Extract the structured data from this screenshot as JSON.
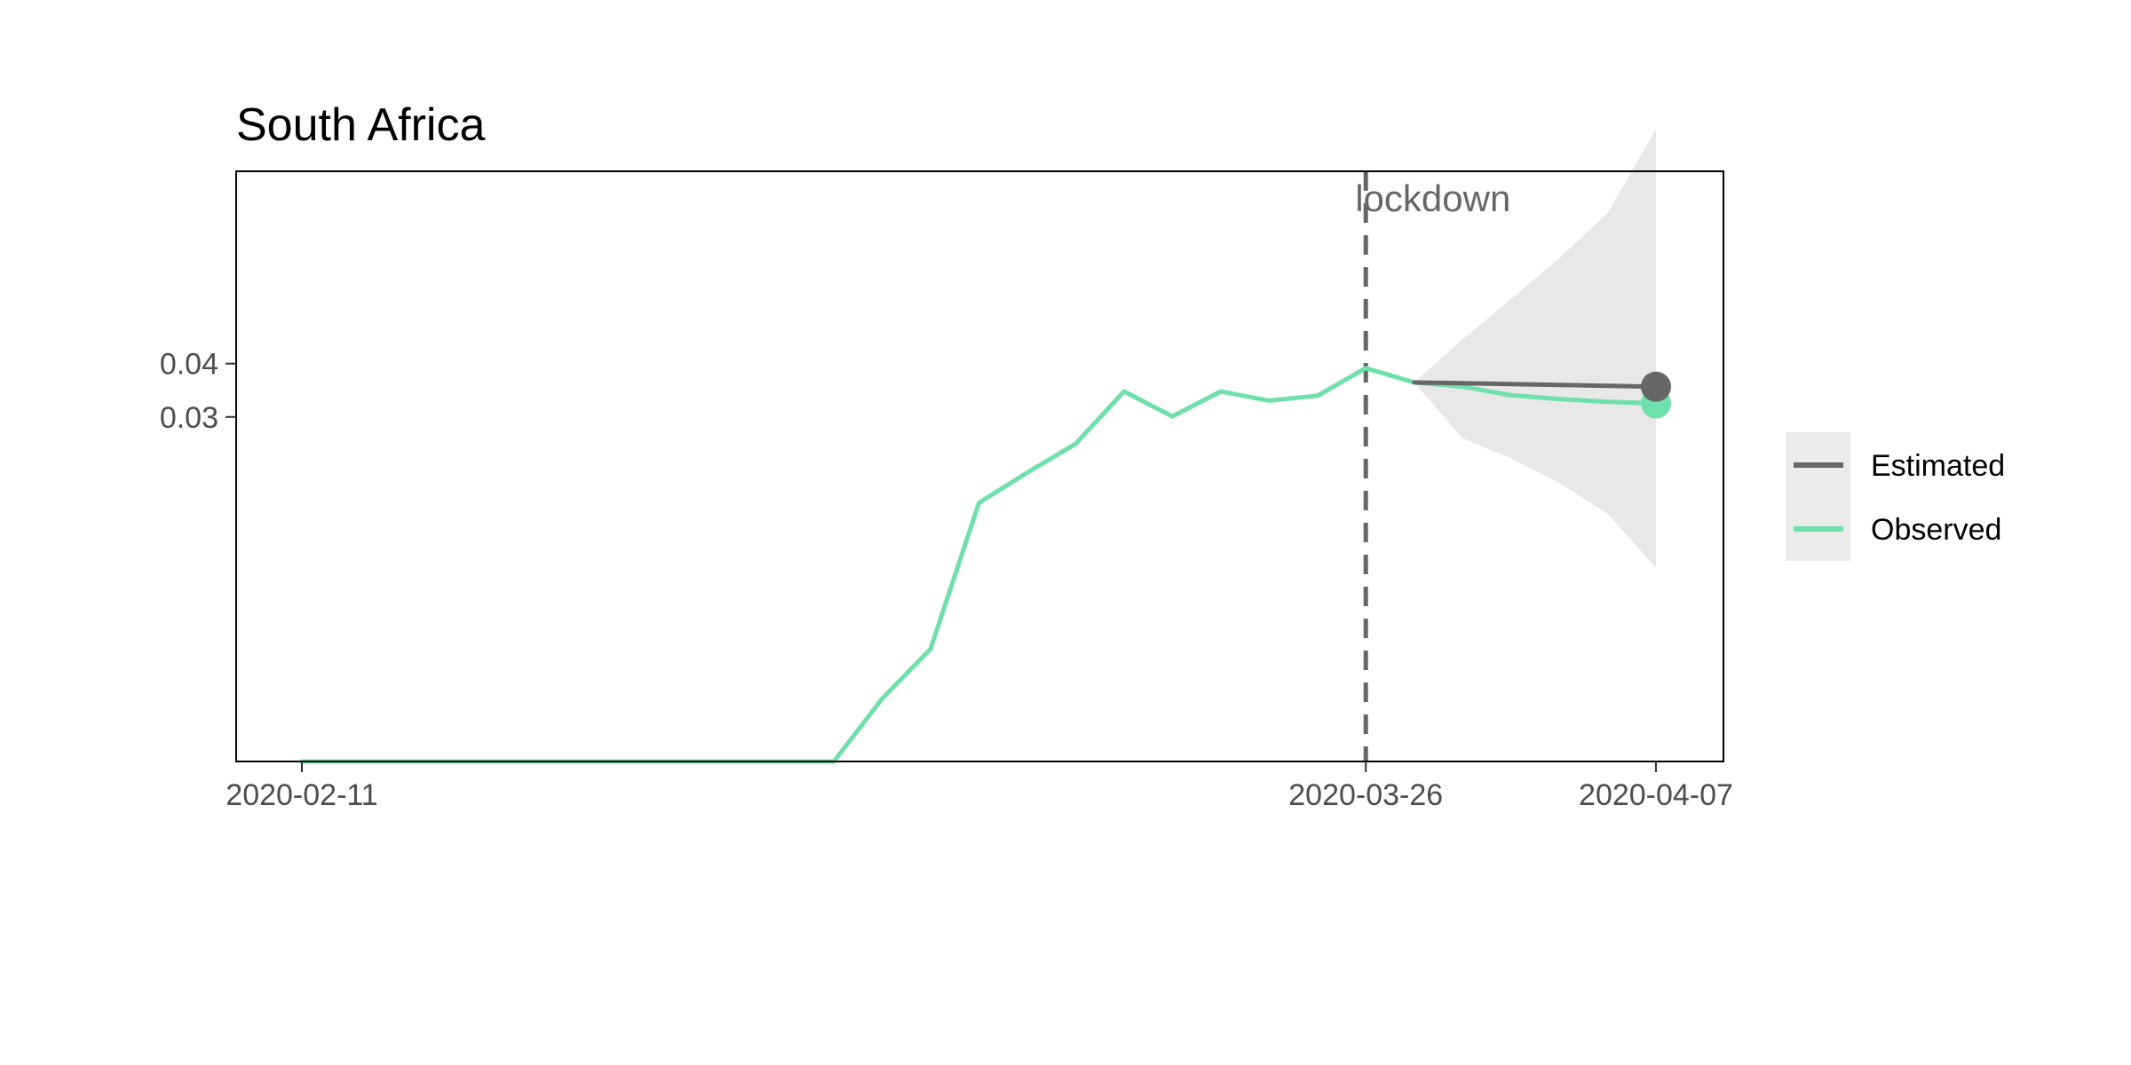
{
  "chart_data": {
    "type": "line",
    "title": "South Africa",
    "xlabel": "",
    "ylabel": "",
    "x_axis_type": "date",
    "x_ticks": [
      "2020-02-11",
      "2020-03-26",
      "2020-04-07"
    ],
    "y_ticks": [
      0.03,
      0.04
    ],
    "y_tick_labels": [
      "0.03",
      "0.04"
    ],
    "grid": false,
    "legend_position": "right",
    "annotation": {
      "label": "lockdown",
      "x": "2020-03-26"
    },
    "series": [
      {
        "name": "Observed",
        "color": "#6ee0a9",
        "points": [
          [
            "2020-02-11",
            0.0
          ],
          [
            "2020-02-13",
            0.0
          ],
          [
            "2020-02-15",
            0.0
          ],
          [
            "2020-02-17",
            0.0
          ],
          [
            "2020-02-19",
            0.0
          ],
          [
            "2020-02-21",
            0.0
          ],
          [
            "2020-02-23",
            0.0
          ],
          [
            "2020-02-25",
            0.0
          ],
          [
            "2020-02-27",
            0.0
          ],
          [
            "2020-02-29",
            0.0
          ],
          [
            "2020-03-02",
            0.0
          ],
          [
            "2020-03-04",
            0.0
          ],
          [
            "2020-03-06",
            0.001
          ],
          [
            "2020-03-08",
            0.0032
          ],
          [
            "2020-03-10",
            0.0169
          ],
          [
            "2020-03-12",
            0.0211
          ],
          [
            "2020-03-14",
            0.0255
          ],
          [
            "2020-03-16",
            0.0346
          ],
          [
            "2020-03-18",
            0.0301
          ],
          [
            "2020-03-20",
            0.0346
          ],
          [
            "2020-03-22",
            0.0329
          ],
          [
            "2020-03-24",
            0.0338
          ],
          [
            "2020-03-26",
            0.0391
          ],
          [
            "2020-03-28",
            0.0363
          ],
          [
            "2020-03-30",
            0.0355
          ],
          [
            "2020-04-01",
            0.0339
          ],
          [
            "2020-04-03",
            0.0332
          ],
          [
            "2020-04-05",
            0.0327
          ],
          [
            "2020-04-07",
            0.0324
          ]
        ]
      },
      {
        "name": "Estimated",
        "color": "#666666",
        "points": [
          [
            "2020-03-28",
            0.0363
          ],
          [
            "2020-04-01",
            0.036
          ],
          [
            "2020-04-07",
            0.0355
          ]
        ]
      }
    ],
    "ribbon": {
      "color": "#e8e8e8",
      "points": [
        [
          "2020-03-28",
          0.0363,
          0.0363
        ],
        [
          "2020-03-30",
          0.0264,
          0.045
        ],
        [
          "2020-04-01",
          0.0232,
          0.054
        ],
        [
          "2020-04-03",
          0.0196,
          0.064
        ],
        [
          "2020-04-05",
          0.0155,
          0.076
        ],
        [
          "2020-04-07",
          0.0095,
          0.101
        ]
      ]
    }
  }
}
